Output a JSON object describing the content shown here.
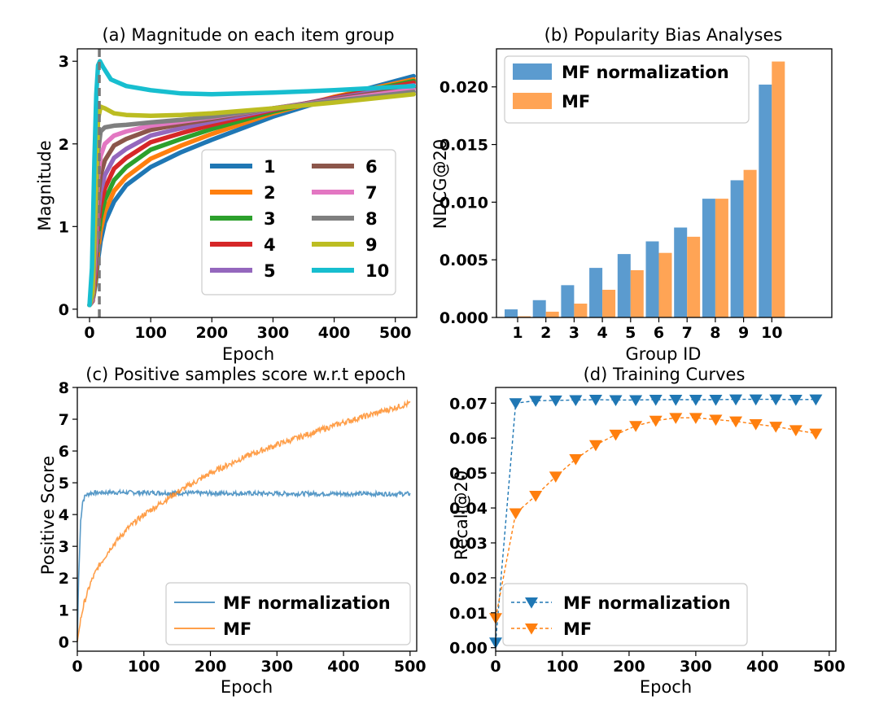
{
  "chart_data": [
    {
      "id": "a",
      "type": "line",
      "title": "(a) Magnitude on each item group",
      "xlabel": "Epoch",
      "ylabel": "Magnitude",
      "xlim": [
        -20,
        535
      ],
      "ylim": [
        -0.1,
        3.15
      ],
      "xticks": [
        0,
        100,
        200,
        300,
        400,
        500
      ],
      "yticks": [
        0,
        1,
        2,
        3
      ],
      "vline_x": 16,
      "grid": false,
      "legend_position": "lower-right",
      "legend_columns": 2,
      "series": [
        {
          "name": "1",
          "color": "#1f77b4",
          "points": [
            [
              0,
              0.05
            ],
            [
              5,
              0.1
            ],
            [
              10,
              0.3
            ],
            [
              14,
              0.6
            ],
            [
              18,
              0.82
            ],
            [
              25,
              1.05
            ],
            [
              40,
              1.3
            ],
            [
              60,
              1.5
            ],
            [
              100,
              1.72
            ],
            [
              150,
              1.9
            ],
            [
              200,
              2.05
            ],
            [
              300,
              2.33
            ],
            [
              400,
              2.56
            ],
            [
              530,
              2.82
            ]
          ]
        },
        {
          "name": "2",
          "color": "#ff7f0e",
          "points": [
            [
              0,
              0.05
            ],
            [
              5,
              0.1
            ],
            [
              10,
              0.35
            ],
            [
              14,
              0.7
            ],
            [
              18,
              0.95
            ],
            [
              25,
              1.18
            ],
            [
              40,
              1.43
            ],
            [
              60,
              1.6
            ],
            [
              100,
              1.82
            ],
            [
              150,
              1.98
            ],
            [
              200,
              2.12
            ],
            [
              300,
              2.37
            ],
            [
              400,
              2.57
            ],
            [
              530,
              2.78
            ]
          ]
        },
        {
          "name": "3",
          "color": "#2ca02c",
          "points": [
            [
              0,
              0.05
            ],
            [
              5,
              0.1
            ],
            [
              10,
              0.4
            ],
            [
              14,
              0.85
            ],
            [
              18,
              1.1
            ],
            [
              25,
              1.32
            ],
            [
              40,
              1.56
            ],
            [
              60,
              1.72
            ],
            [
              100,
              1.93
            ],
            [
              150,
              2.06
            ],
            [
              200,
              2.18
            ],
            [
              300,
              2.39
            ],
            [
              400,
              2.56
            ],
            [
              530,
              2.76
            ]
          ]
        },
        {
          "name": "4",
          "color": "#d62728",
          "points": [
            [
              0,
              0.05
            ],
            [
              5,
              0.1
            ],
            [
              10,
              0.45
            ],
            [
              14,
              1.0
            ],
            [
              18,
              1.25
            ],
            [
              25,
              1.46
            ],
            [
              40,
              1.7
            ],
            [
              60,
              1.83
            ],
            [
              100,
              2.02
            ],
            [
              150,
              2.13
            ],
            [
              200,
              2.23
            ],
            [
              300,
              2.41
            ],
            [
              400,
              2.56
            ],
            [
              530,
              2.74
            ]
          ]
        },
        {
          "name": "5",
          "color": "#9467bd",
          "points": [
            [
              0,
              0.05
            ],
            [
              5,
              0.1
            ],
            [
              10,
              0.55
            ],
            [
              14,
              1.15
            ],
            [
              18,
              1.42
            ],
            [
              25,
              1.62
            ],
            [
              40,
              1.83
            ],
            [
              60,
              1.94
            ],
            [
              100,
              2.1
            ],
            [
              150,
              2.19
            ],
            [
              200,
              2.27
            ],
            [
              300,
              2.42
            ],
            [
              400,
              2.55
            ],
            [
              530,
              2.71
            ]
          ]
        },
        {
          "name": "6",
          "color": "#8c564b",
          "points": [
            [
              0,
              0.05
            ],
            [
              5,
              0.1
            ],
            [
              10,
              0.65
            ],
            [
              14,
              1.35
            ],
            [
              18,
              1.62
            ],
            [
              25,
              1.8
            ],
            [
              40,
              1.98
            ],
            [
              60,
              2.06
            ],
            [
              100,
              2.17
            ],
            [
              150,
              2.24
            ],
            [
              200,
              2.3
            ],
            [
              300,
              2.43
            ],
            [
              400,
              2.54
            ],
            [
              530,
              2.68
            ]
          ]
        },
        {
          "name": "7",
          "color": "#e377c2",
          "points": [
            [
              0,
              0.05
            ],
            [
              5,
              0.12
            ],
            [
              10,
              0.8
            ],
            [
              14,
              1.6
            ],
            [
              18,
              1.85
            ],
            [
              25,
              2.0
            ],
            [
              40,
              2.1
            ],
            [
              60,
              2.15
            ],
            [
              100,
              2.22
            ],
            [
              150,
              2.27
            ],
            [
              200,
              2.32
            ],
            [
              300,
              2.43
            ],
            [
              400,
              2.53
            ],
            [
              530,
              2.66
            ]
          ]
        },
        {
          "name": "8",
          "color": "#7f7f7f",
          "points": [
            [
              0,
              0.05
            ],
            [
              5,
              0.15
            ],
            [
              10,
              1.0
            ],
            [
              14,
              1.9
            ],
            [
              18,
              2.15
            ],
            [
              25,
              2.2
            ],
            [
              40,
              2.22
            ],
            [
              60,
              2.23
            ],
            [
              100,
              2.26
            ],
            [
              150,
              2.29
            ],
            [
              200,
              2.33
            ],
            [
              300,
              2.43
            ],
            [
              400,
              2.52
            ],
            [
              530,
              2.63
            ]
          ]
        },
        {
          "name": "9",
          "color": "#bcbd22",
          "points": [
            [
              0,
              0.05
            ],
            [
              5,
              0.2
            ],
            [
              10,
              1.3
            ],
            [
              14,
              2.3
            ],
            [
              18,
              2.45
            ],
            [
              25,
              2.43
            ],
            [
              40,
              2.37
            ],
            [
              60,
              2.35
            ],
            [
              100,
              2.34
            ],
            [
              150,
              2.35
            ],
            [
              200,
              2.37
            ],
            [
              300,
              2.43
            ],
            [
              400,
              2.5
            ],
            [
              530,
              2.6
            ]
          ]
        },
        {
          "name": "10",
          "color": "#17becf",
          "points": [
            [
              0,
              0.05
            ],
            [
              4,
              0.5
            ],
            [
              8,
              1.8
            ],
            [
              11,
              2.6
            ],
            [
              14,
              2.95
            ],
            [
              17,
              3.0
            ],
            [
              22,
              2.93
            ],
            [
              35,
              2.78
            ],
            [
              60,
              2.7
            ],
            [
              100,
              2.65
            ],
            [
              150,
              2.61
            ],
            [
              200,
              2.6
            ],
            [
              300,
              2.62
            ],
            [
              400,
              2.65
            ],
            [
              530,
              2.7
            ]
          ]
        }
      ]
    },
    {
      "id": "b",
      "type": "bar",
      "title": "(b) Popularity Bias Analyses",
      "xlabel": "Group ID",
      "ylabel": "NDCG@20",
      "categories": [
        "1",
        "2",
        "3",
        "4",
        "5",
        "6",
        "7",
        "8",
        "9",
        "10"
      ],
      "ylim": [
        0,
        0.0233
      ],
      "yticks": [
        "0.000",
        "0.005",
        "0.010",
        "0.015",
        "0.020"
      ],
      "grid": false,
      "legend_position": "top-left",
      "series": [
        {
          "name": "MF normalization",
          "color": "#5b9bcf",
          "values": [
            0.0007,
            0.0015,
            0.0028,
            0.0043,
            0.0055,
            0.0066,
            0.0078,
            0.0103,
            0.0119,
            0.0202
          ]
        },
        {
          "name": "MF",
          "color": "#ffa455",
          "values": [
            0.0001,
            0.0005,
            0.0012,
            0.0024,
            0.0041,
            0.0056,
            0.007,
            0.0103,
            0.0128,
            0.0222
          ]
        }
      ]
    },
    {
      "id": "c",
      "type": "line",
      "title": "(c) Positive samples score w.r.t epoch",
      "xlabel": "Epoch",
      "ylabel": "Positive Score",
      "xlim": [
        0,
        510
      ],
      "ylim": [
        -0.3,
        8
      ],
      "xticks": [
        0,
        100,
        200,
        300,
        400,
        500
      ],
      "yticks": [
        0,
        1,
        2,
        3,
        4,
        5,
        6,
        7,
        8
      ],
      "grid": false,
      "legend_position": "lower-right",
      "series": [
        {
          "name": "MF normalization",
          "color": "#1f77b4",
          "noise": 0.07,
          "points": [
            [
              0,
              0
            ],
            [
              2,
              2.0
            ],
            [
              5,
              3.8
            ],
            [
              8,
              4.4
            ],
            [
              12,
              4.6
            ],
            [
              20,
              4.68
            ],
            [
              50,
              4.7
            ],
            [
              150,
              4.68
            ],
            [
              300,
              4.66
            ],
            [
              500,
              4.65
            ]
          ]
        },
        {
          "name": "MF",
          "color": "#ff7f0e",
          "noise": 0.09,
          "points": [
            [
              0,
              0
            ],
            [
              5,
              0.7
            ],
            [
              10,
              1.2
            ],
            [
              20,
              1.85
            ],
            [
              30,
              2.3
            ],
            [
              50,
              2.95
            ],
            [
              75,
              3.55
            ],
            [
              100,
              4.0
            ],
            [
              150,
              4.7
            ],
            [
              200,
              5.3
            ],
            [
              250,
              5.8
            ],
            [
              300,
              6.2
            ],
            [
              350,
              6.55
            ],
            [
              400,
              6.9
            ],
            [
              450,
              7.2
            ],
            [
              500,
              7.5
            ]
          ]
        }
      ]
    },
    {
      "id": "d",
      "type": "line",
      "title": "(d) Training Curves",
      "xlabel": "Epoch",
      "ylabel": "Recall@20",
      "xlim": [
        0,
        510
      ],
      "ylim": [
        -0.001,
        0.0745
      ],
      "xticks": [
        0,
        100,
        200,
        300,
        400,
        500
      ],
      "yticks": [
        "0.00",
        "0.01",
        "0.02",
        "0.03",
        "0.04",
        "0.05",
        "0.06",
        "0.07"
      ],
      "grid": false,
      "legend_position": "lower-right",
      "series": [
        {
          "name": "MF normalization",
          "color": "#1f77b4",
          "x": [
            0,
            30,
            60,
            90,
            120,
            150,
            180,
            210,
            240,
            270,
            300,
            330,
            360,
            390,
            420,
            450,
            480
          ],
          "values": [
            0.0015,
            0.07,
            0.0707,
            0.0708,
            0.0709,
            0.071,
            0.0709,
            0.0709,
            0.071,
            0.071,
            0.071,
            0.071,
            0.0711,
            0.0711,
            0.0711,
            0.071,
            0.0711
          ]
        },
        {
          "name": "MF",
          "color": "#ff7f0e",
          "x": [
            0,
            30,
            60,
            90,
            120,
            150,
            180,
            210,
            240,
            270,
            300,
            330,
            360,
            390,
            420,
            450,
            480
          ],
          "values": [
            0.0085,
            0.0385,
            0.0435,
            0.049,
            0.054,
            0.058,
            0.061,
            0.0635,
            0.065,
            0.0658,
            0.0658,
            0.0653,
            0.0648,
            0.064,
            0.0633,
            0.0623,
            0.0613
          ]
        }
      ]
    }
  ]
}
